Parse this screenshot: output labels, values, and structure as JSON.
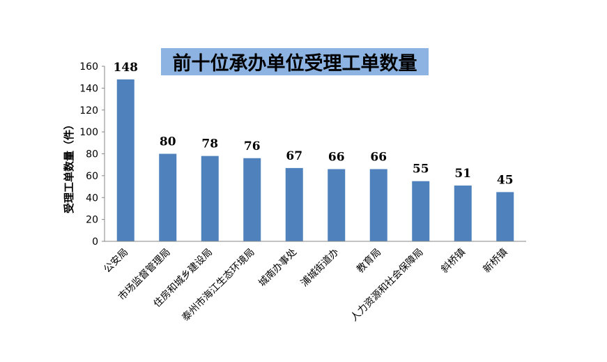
{
  "chart_data": {
    "type": "bar",
    "title": "前十位承办单位受理工单数量",
    "ylabel": "受理工单数量（件）",
    "xlabel": "",
    "categories": [
      "公安局",
      "市场监督管理局",
      "住房和城乡建设局",
      "泰州市海江生态环境局",
      "城南办事处",
      "浦城街道办",
      "教育局",
      "人力资源和社会保障局",
      "斜桥镇",
      "新桥镇"
    ],
    "values": [
      148,
      80,
      78,
      76,
      67,
      66,
      66,
      55,
      51,
      45
    ],
    "data_labels": [
      "148",
      "80",
      "78",
      "76",
      "67",
      "66",
      "66",
      "55",
      "51",
      "45"
    ],
    "y_ticks": [
      "0",
      "20",
      "40",
      "60",
      "80",
      "100",
      "120",
      "140",
      "160"
    ],
    "ylim": [
      0,
      160
    ],
    "grid": false,
    "legend": "none",
    "colors": {
      "bar": "#4f81bd",
      "title_background": "#8db3e2",
      "axis": "#868686"
    }
  }
}
